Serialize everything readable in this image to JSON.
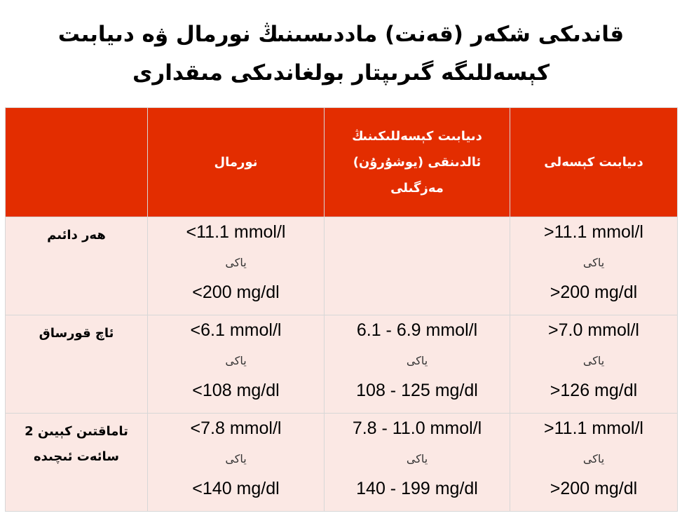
{
  "title": {
    "line1": "قاندىكى شكەر (قەنت) ماددىسىنىڭ نورمال ۋە دىيابىت",
    "line2": "كېسەللىگە گىرىپتار بولغاندىكى مىقدارى"
  },
  "table": {
    "headers": {
      "label": "",
      "normal": "نورمال",
      "prediabetes": [
        "دىيابىت كېسەللىكىنىڭ",
        "ئالدىنقى (يوشۇرۇن)",
        "مەزگىلى"
      ],
      "diabetes": "دىيابىت كېسەلى"
    },
    "or_word": "ياكى",
    "rows": [
      {
        "label": [
          "هەر دائىم"
        ],
        "normal": [
          "<11.1 mmol/l",
          "<200 mg/dl"
        ],
        "prediabetes": [],
        "diabetes": [
          ">11.1 mmol/l",
          ">200 mg/dl"
        ]
      },
      {
        "label": [
          "ئاچ قورساق"
        ],
        "normal": [
          "<6.1 mmol/l",
          "<108 mg/dl"
        ],
        "prediabetes": [
          "6.1  - 6.9 mmol/l",
          "108  - 125 mg/dl"
        ],
        "diabetes": [
          ">7.0 mmol/l",
          ">126 mg/dl"
        ]
      },
      {
        "label": [
          "تاماقتىن كېيىن 2",
          "سائەت ئىچىدە"
        ],
        "normal": [
          "<7.8 mmol/l",
          "<140 mg/dl"
        ],
        "prediabetes": [
          "7.8 - 11.0 mmol/l",
          "140 - 199 mg/dl"
        ],
        "diabetes": [
          ">11.1 mmol/l",
          ">200 mg/dl"
        ]
      }
    ]
  },
  "colors": {
    "header_bg": "#e32d00",
    "header_text": "#ffffff",
    "cell_bg": "#fbe8e4",
    "grid": "#d7d7d7"
  }
}
